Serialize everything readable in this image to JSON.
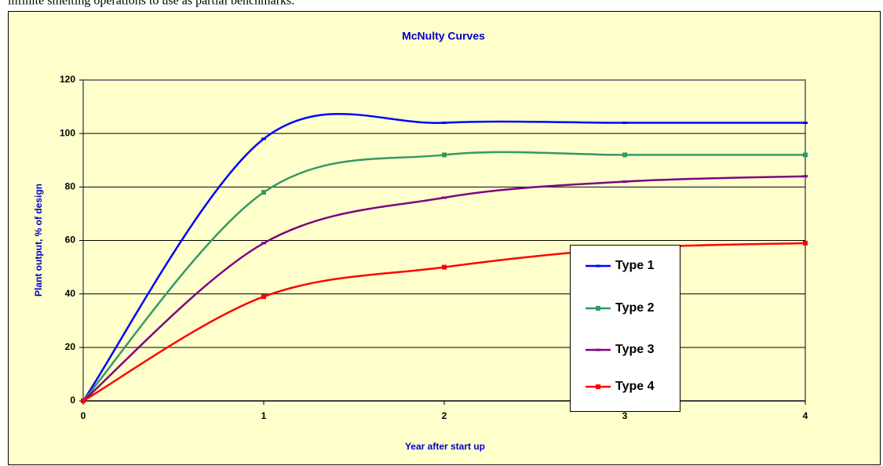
{
  "text_above": "infinite smelting operations to use as partial benchmarks.",
  "chart_data": {
    "type": "line",
    "smooth": true,
    "title": "McNulty Curves",
    "x_label": "Year after start up",
    "y_label": "Plant output, % of design",
    "x": [
      0,
      1,
      2,
      3,
      4
    ],
    "xlim": [
      0,
      4
    ],
    "xticks": [
      0,
      1,
      2,
      3,
      4
    ],
    "ylim": [
      0,
      120
    ],
    "yticks": [
      0,
      20,
      40,
      60,
      80,
      100,
      120
    ],
    "grid": true,
    "legend": "lower right",
    "series": [
      {
        "name": "Type 1",
        "color": "#0000ff",
        "marker": "dash",
        "values": [
          0,
          98,
          104,
          104,
          104
        ]
      },
      {
        "name": "Type 2",
        "color": "#339966",
        "marker": "square",
        "values": [
          0,
          78,
          92,
          92,
          92
        ]
      },
      {
        "name": "Type 3",
        "color": "#800080",
        "marker": "dash",
        "values": [
          0,
          59,
          76,
          82,
          84
        ]
      },
      {
        "name": "Type 4",
        "color": "#ff0000",
        "marker": "square",
        "values": [
          0,
          39,
          50,
          57,
          59
        ]
      }
    ]
  }
}
